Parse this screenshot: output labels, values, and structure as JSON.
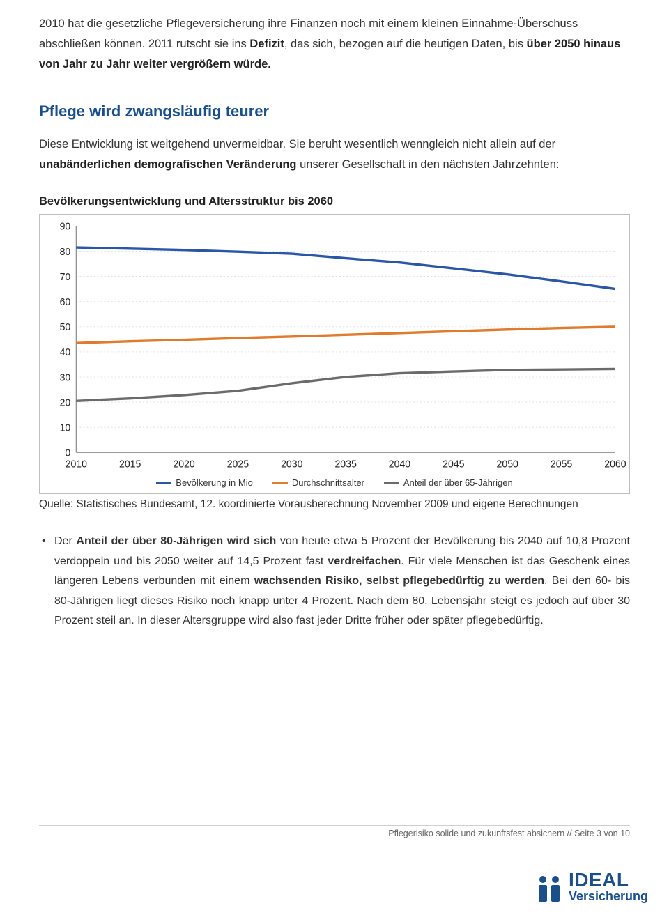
{
  "para1_html": "2010 hat die gesetzliche Pflegeversicherung ihre Finanzen noch mit einem kleinen Einnahme-Überschuss abschließen können. 2011 rutscht sie ins <b>Defizit</b>, das sich, bezogen auf die heutigen Daten, bis <b>über 2050 hinaus von Jahr zu Jahr weiter vergrößern würde.</b>",
  "section_title": "Pflege wird zwangsläufig teurer",
  "para2_html": "Diese Entwicklung ist weitgehend unvermeidbar. Sie beruht wesentlich wenngleich nicht allein auf der <b>unabänderlichen demografischen Veränderung</b> unserer Gesellschaft in den nächsten Jahrzehnten:",
  "chart": {
    "title": "Bevölkerungsentwicklung und Altersstruktur bis 2060",
    "type": "line",
    "background_color": "#ffffff",
    "grid_color": "#e3e3e3",
    "axis_color": "#8a8a8a",
    "label_fontsize": 14,
    "line_width": 3.2,
    "ylim": [
      0,
      90
    ],
    "ytick_step": 10,
    "x_categories": [
      "2010",
      "2015",
      "2020",
      "2025",
      "2030",
      "2035",
      "2040",
      "2045",
      "2050",
      "2055",
      "2060"
    ],
    "series": [
      {
        "name": "Bevölkerung in Mio",
        "color": "#2a57a5",
        "values": [
          81.5,
          81.0,
          80.5,
          79.8,
          79.0,
          77.2,
          75.5,
          73.2,
          70.8,
          68.0,
          65.0
        ]
      },
      {
        "name": "Durchschnittsalter",
        "color": "#e07b2e",
        "values": [
          43.5,
          44.2,
          44.8,
          45.5,
          46.1,
          46.8,
          47.5,
          48.2,
          48.9,
          49.5,
          50.0
        ]
      },
      {
        "name": "Anteil der über 65-Jährigen",
        "color": "#6b6b6b",
        "values": [
          20.5,
          21.5,
          22.8,
          24.5,
          27.5,
          30.0,
          31.5,
          32.2,
          32.8,
          33.0,
          33.2
        ]
      }
    ],
    "legend": [
      {
        "label": "Bevölkerung in Mio",
        "color": "#2a57a5"
      },
      {
        "label": "Durchschnittsalter",
        "color": "#e07b2e"
      },
      {
        "label": "Anteil der über 65-Jährigen",
        "color": "#6b6b6b"
      }
    ]
  },
  "source": "Quelle: Statistisches Bundesamt, 12. koordinierte Vorausberechnung November 2009 und eigene Berechnungen",
  "bullet_html": "Der <b>Anteil der über 80-Jährigen wird sich</b> von heute etwa 5 Prozent der Bevölkerung bis 2040 auf 10,8 Prozent verdoppeln und bis 2050 weiter auf 14,5 Prozent fast <b>verdreifachen</b>. Für viele Menschen ist das Geschenk eines längeren Lebens verbunden mit einem <b>wachsenden Risiko, selbst pflegebedürftig zu werden</b>. Bei den 60- bis 80-Jährigen liegt dieses Risiko noch knapp unter 4 Prozent. Nach dem 80. Lebensjahr steigt es jedoch auf über 30 Prozent steil an. In dieser Altersgruppe wird also fast jeder Dritte früher oder später pflegebedürftig.",
  "footer": "Pflegerisiko solide und zukunftsfest absichern // Seite 3 von 10",
  "logo": {
    "line1": "IDEAL",
    "line2": "Versicherung",
    "color": "#1a4f8a"
  }
}
